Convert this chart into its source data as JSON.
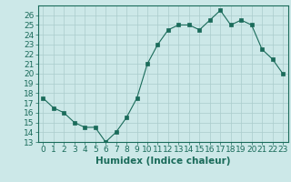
{
  "xlabel": "Humidex (Indice chaleur)",
  "x": [
    0,
    1,
    2,
    3,
    4,
    5,
    6,
    7,
    8,
    9,
    10,
    11,
    12,
    13,
    14,
    15,
    16,
    17,
    18,
    19,
    20,
    21,
    22,
    23
  ],
  "y": [
    17.5,
    16.5,
    16.0,
    15.0,
    14.5,
    14.5,
    13.0,
    14.0,
    15.5,
    17.5,
    21.0,
    23.0,
    24.5,
    25.0,
    25.0,
    24.5,
    25.5,
    26.5,
    25.0,
    25.5,
    25.0,
    22.5,
    21.5,
    20.0
  ],
  "line_color": "#1a6b5a",
  "marker_size": 2.5,
  "bg_color": "#cce8e8",
  "grid_color": "#aacccc",
  "ylim": [
    13,
    27
  ],
  "xlim": [
    -0.5,
    23.5
  ],
  "yticks": [
    13,
    14,
    15,
    16,
    17,
    18,
    19,
    20,
    21,
    22,
    23,
    24,
    25,
    26
  ],
  "xticks": [
    0,
    1,
    2,
    3,
    4,
    5,
    6,
    7,
    8,
    9,
    10,
    11,
    12,
    13,
    14,
    15,
    16,
    17,
    18,
    19,
    20,
    21,
    22,
    23
  ],
  "tick_label_fontsize": 6.5,
  "xlabel_fontsize": 7.5,
  "axis_color": "#1a6b5a"
}
